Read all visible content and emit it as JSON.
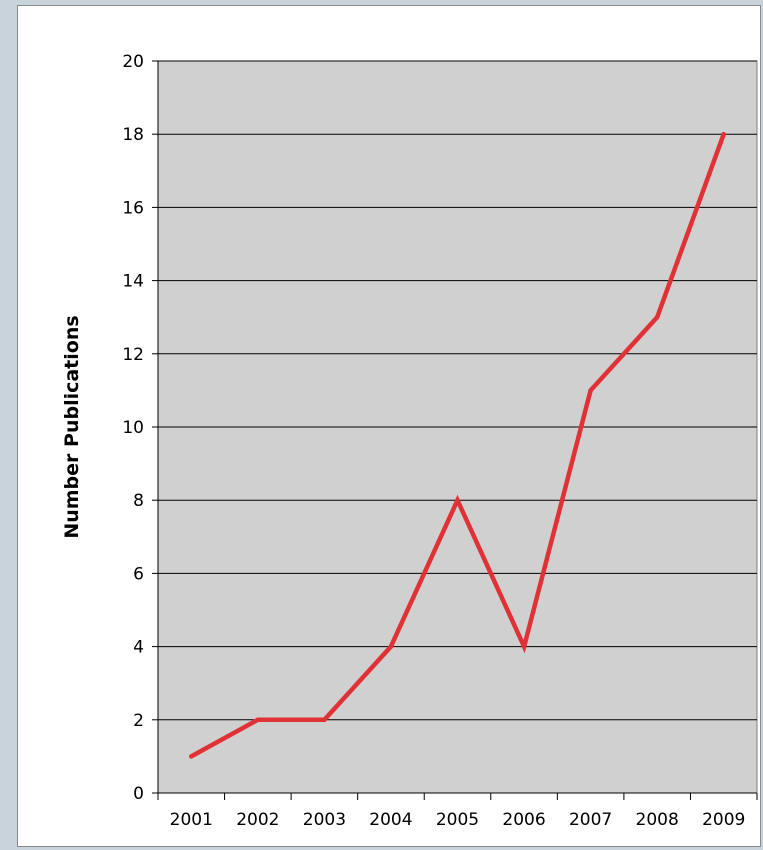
{
  "chart_data": {
    "type": "line",
    "title": "",
    "xlabel": "",
    "ylabel": "Number Publications",
    "categories": [
      "2001",
      "2002",
      "2003",
      "2004",
      "2005",
      "2006",
      "2007",
      "2008",
      "2009"
    ],
    "series": [
      {
        "values": [
          1,
          2,
          2,
          4,
          8,
          4,
          11,
          13,
          18
        ]
      }
    ],
    "ylim": [
      0,
      20
    ],
    "yticks": [
      "0",
      "2",
      "4",
      "6",
      "8",
      "10",
      "12",
      "14",
      "16",
      "18",
      "20"
    ],
    "grid": "horizontal",
    "legend": "none",
    "colors": {
      "line": "#e03236",
      "plot_background": "#d0d0d0",
      "gridline": "#000000"
    }
  }
}
